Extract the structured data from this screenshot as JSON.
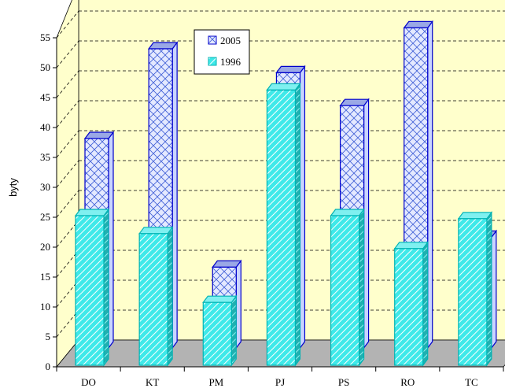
{
  "chart_data": {
    "type": "bar",
    "title": "",
    "xlabel": "",
    "ylabel": "byty",
    "ylim": [
      0,
      55
    ],
    "yticks": [
      0,
      5,
      10,
      15,
      20,
      25,
      30,
      35,
      40,
      45,
      50,
      55
    ],
    "categories": [
      "DO",
      "KT",
      "PM",
      "PJ",
      "PS",
      "RO",
      "TC"
    ],
    "series": [
      {
        "name": "2005",
        "values": [
          35,
          50,
          13.5,
          46,
          40.5,
          53.5,
          18.5
        ]
      },
      {
        "name": "1996",
        "values": [
          25,
          22,
          10.5,
          46,
          25,
          19.5,
          24.5
        ]
      }
    ],
    "legend_position": "top-center",
    "grid": true,
    "colors": {
      "wall": "#ffffcc",
      "floor": "#b3b3b3",
      "series_2005_fill": "#dfe6ff",
      "series_2005_stroke": "#0000cc",
      "series_1996_fill": "#33e6e6",
      "series_1996_stroke": "#00b3b3"
    }
  }
}
